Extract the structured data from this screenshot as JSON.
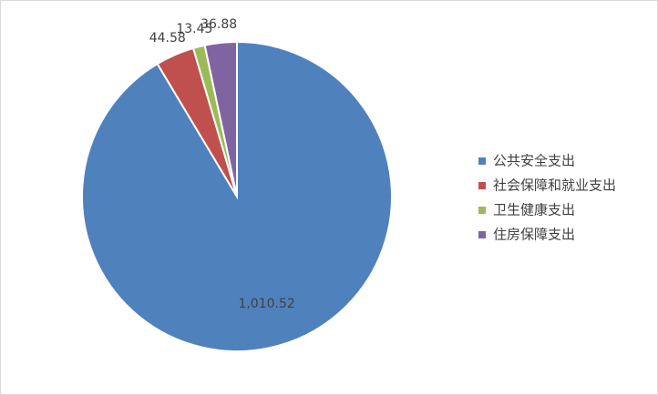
{
  "chart_data": {
    "type": "pie",
    "categories": [
      "公共安全支出",
      "社会保障和就业支出",
      "卫生健康支出",
      "住房保障支出"
    ],
    "values": [
      1010.52,
      44.58,
      13.45,
      36.88
    ],
    "value_labels": [
      "1,010.52",
      "44.58",
      "13.45",
      "36.88"
    ],
    "colors": [
      "#4f81bd",
      "#c0504d",
      "#9bbb59",
      "#8064a2"
    ],
    "legend": "right"
  }
}
